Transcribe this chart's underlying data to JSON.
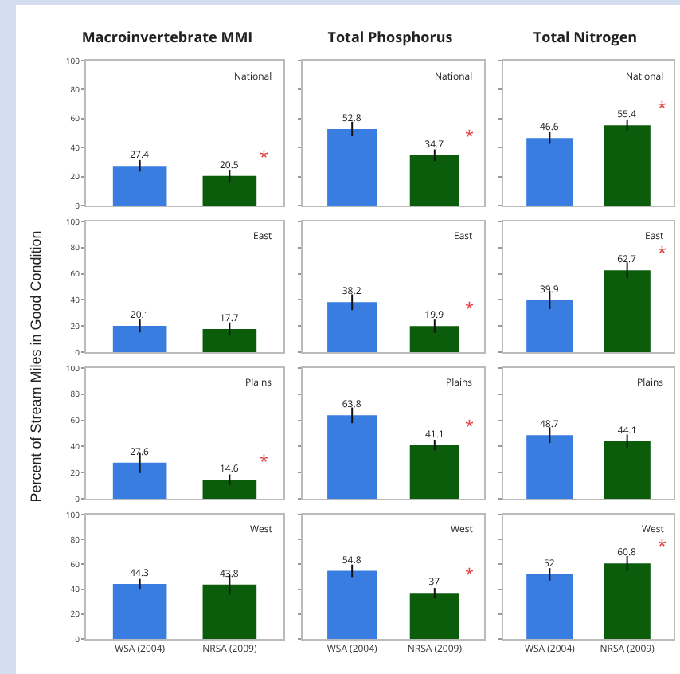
{
  "chart_data": [
    {
      "type": "bar",
      "title": "Macroinvertebrate MMI",
      "ylabel": "Percent of Stream Miles in Good Condition",
      "categories": [
        "WSA (2004)",
        "NRSA (2009)"
      ],
      "values": [
        27.4,
        20.5
      ],
      "colors": [
        "#3a7de0",
        "#0b5c0b"
      ],
      "errors": [
        4,
        4
      ],
      "data_labels": true,
      "ylim": [
        0,
        100
      ],
      "yticks": [
        0,
        20,
        40,
        60,
        80,
        100
      ],
      "tick_labels": "y",
      "annotations": [
        "National",
        {
          "text": "*",
          "x": "NRSA (2009)",
          "y": 20.5
        }
      ]
    },
    {
      "type": "bar",
      "title": "Total Phosphorus",
      "categories": [
        "WSA (2004)",
        "NRSA (2009)"
      ],
      "values": [
        52.8,
        34.7
      ],
      "colors": [
        "#3a7de0",
        "#0b5c0b"
      ],
      "errors": [
        5,
        4
      ],
      "data_labels": true,
      "ylim": [
        0,
        100
      ],
      "yticks": [
        0,
        20,
        40,
        60,
        80,
        100
      ],
      "tick_labels": false,
      "annotations": [
        "National",
        {
          "text": "*",
          "x": "NRSA (2009)",
          "y": 34.7
        }
      ]
    },
    {
      "type": "bar",
      "title": "Total Nitrogen",
      "categories": [
        "WSA (2004)",
        "NRSA (2009)"
      ],
      "values": [
        46.6,
        55.4
      ],
      "colors": [
        "#3a7de0",
        "#0b5c0b"
      ],
      "errors": [
        4,
        4
      ],
      "data_labels": true,
      "ylim": [
        0,
        100
      ],
      "yticks": [
        0,
        20,
        40,
        60,
        80,
        100
      ],
      "tick_labels": false,
      "annotations": [
        "National",
        {
          "text": "*",
          "x": "NRSA (2009)",
          "y": 55.4
        }
      ]
    },
    {
      "type": "bar",
      "categories": [
        "WSA (2004)",
        "NRSA (2009)"
      ],
      "values": [
        20.1,
        17.7
      ],
      "colors": [
        "#3a7de0",
        "#0b5c0b"
      ],
      "errors": [
        5,
        5
      ],
      "data_labels": true,
      "ylim": [
        0,
        100
      ],
      "yticks": [
        0,
        20,
        40,
        60,
        80,
        100
      ],
      "tick_labels": "y",
      "annotations": [
        "East"
      ]
    },
    {
      "type": "bar",
      "categories": [
        "WSA (2004)",
        "NRSA (2009)"
      ],
      "values": [
        38.2,
        19.9
      ],
      "colors": [
        "#3a7de0",
        "#0b5c0b"
      ],
      "errors": [
        6,
        5
      ],
      "data_labels": true,
      "ylim": [
        0,
        100
      ],
      "yticks": [
        0,
        20,
        40,
        60,
        80,
        100
      ],
      "tick_labels": false,
      "annotations": [
        "East",
        {
          "text": "*",
          "x": "NRSA (2009)",
          "y": 19.9
        }
      ]
    },
    {
      "type": "bar",
      "categories": [
        "WSA (2004)",
        "NRSA (2009)"
      ],
      "values": [
        39.9,
        62.7
      ],
      "colors": [
        "#3a7de0",
        "#0b5c0b"
      ],
      "errors": [
        7,
        6
      ],
      "data_labels": true,
      "ylim": [
        0,
        100
      ],
      "yticks": [
        0,
        20,
        40,
        60,
        80,
        100
      ],
      "tick_labels": false,
      "annotations": [
        "East",
        {
          "text": "*",
          "x": "NRSA (2009)",
          "y": 62.7
        }
      ]
    },
    {
      "type": "bar",
      "categories": [
        "WSA (2004)",
        "NRSA (2009)"
      ],
      "values": [
        27.6,
        14.6
      ],
      "colors": [
        "#3a7de0",
        "#0b5c0b"
      ],
      "errors": [
        8,
        4
      ],
      "data_labels": true,
      "ylim": [
        0,
        100
      ],
      "yticks": [
        0,
        20,
        40,
        60,
        80,
        100
      ],
      "tick_labels": "y",
      "annotations": [
        "Plains",
        {
          "text": "*",
          "x": "NRSA (2009)",
          "y": 14.6
        }
      ]
    },
    {
      "type": "bar",
      "categories": [
        "WSA (2004)",
        "NRSA (2009)"
      ],
      "values": [
        63.8,
        41.1
      ],
      "colors": [
        "#3a7de0",
        "#0b5c0b"
      ],
      "errors": [
        6,
        4
      ],
      "data_labels": true,
      "ylim": [
        0,
        100
      ],
      "yticks": [
        0,
        20,
        40,
        60,
        80,
        100
      ],
      "tick_labels": false,
      "annotations": [
        "Plains",
        {
          "text": "*",
          "x": "NRSA (2009)",
          "y": 41.1
        }
      ]
    },
    {
      "type": "bar",
      "categories": [
        "WSA (2004)",
        "NRSA (2009)"
      ],
      "values": [
        48.7,
        44.1
      ],
      "colors": [
        "#3a7de0",
        "#0b5c0b"
      ],
      "errors": [
        6,
        5
      ],
      "data_labels": true,
      "ylim": [
        0,
        100
      ],
      "yticks": [
        0,
        20,
        40,
        60,
        80,
        100
      ],
      "tick_labels": false,
      "annotations": [
        "Plains"
      ]
    },
    {
      "type": "bar",
      "categories": [
        "WSA (2004)",
        "NRSA (2009)"
      ],
      "values": [
        44.3,
        43.8
      ],
      "colors": [
        "#3a7de0",
        "#0b5c0b"
      ],
      "errors": [
        4,
        8
      ],
      "data_labels": true,
      "ylim": [
        0,
        100
      ],
      "yticks": [
        0,
        20,
        40,
        60,
        80,
        100
      ],
      "annotations": [
        "West"
      ]
    },
    {
      "type": "bar",
      "categories": [
        "WSA (2004)",
        "NRSA (2009)"
      ],
      "values": [
        54.8,
        37.0
      ],
      "colors": [
        "#3a7de0",
        "#0b5c0b"
      ],
      "errors": [
        5,
        4
      ],
      "data_labels": true,
      "ylim": [
        0,
        100
      ],
      "yticks": [
        0,
        20,
        40,
        60,
        80,
        100
      ],
      "tick_labels": "x",
      "annotations": [
        "West",
        {
          "text": "*",
          "x": "NRSA (2009)",
          "y": 37.0
        }
      ]
    },
    {
      "type": "bar",
      "categories": [
        "WSA (2004)",
        "NRSA (2009)"
      ],
      "values": [
        52.0,
        60.8
      ],
      "colors": [
        "#3a7de0",
        "#0b5c0b"
      ],
      "errors": [
        5,
        6
      ],
      "data_labels": true,
      "ylim": [
        0,
        100
      ],
      "yticks": [
        0,
        20,
        40,
        60,
        80,
        100
      ],
      "tick_labels": "x",
      "annotations": [
        "West",
        {
          "text": "*",
          "x": "NRSA (2009)",
          "y": 60.8
        }
      ]
    }
  ]
}
